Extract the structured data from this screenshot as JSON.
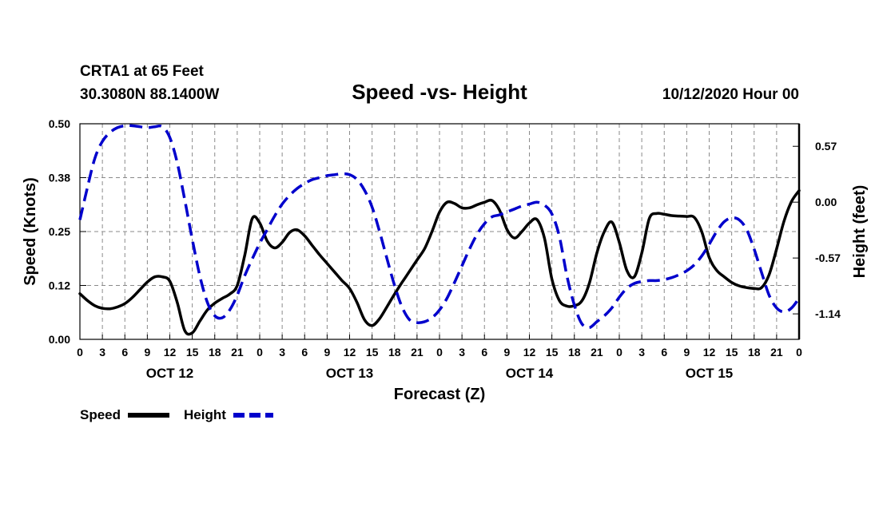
{
  "chart_data": {
    "type": "line",
    "header": {
      "station": "CRTA1 at 65 Feet",
      "coords": "30.3080N 88.1400W",
      "title": "Speed -vs- Height",
      "run": "10/12/2020 Hour 00"
    },
    "xlabel": "Forecast (Z)",
    "ylabel_left": "Speed (Knots)",
    "ylabel_right": "Height (feet)",
    "x_ticks": [
      "0",
      "3",
      "6",
      "9",
      "12",
      "15",
      "18",
      "21",
      "0",
      "3",
      "6",
      "9",
      "12",
      "15",
      "18",
      "21",
      "0",
      "3",
      "6",
      "9",
      "12",
      "15",
      "18",
      "21",
      "0",
      "3",
      "6",
      "9",
      "12",
      "15",
      "18",
      "21",
      "0"
    ],
    "days": [
      "OCT 12",
      "OCT 13",
      "OCT 14",
      "OCT 15"
    ],
    "y_left_ticks": [
      "0.00",
      "0.12",
      "0.25",
      "0.38",
      "0.50"
    ],
    "y_right_ticks": [
      "-1.14",
      "-0.57",
      "0.00",
      "0.57"
    ],
    "ylim_left": [
      0,
      0.5
    ],
    "ylim_right": [
      -1.4,
      0.8
    ],
    "xlim": [
      0,
      96
    ],
    "legend": [
      {
        "label": "Speed",
        "color": "#000000",
        "style": "solid"
      },
      {
        "label": "Height",
        "color": "#0000cc",
        "style": "dashed"
      }
    ],
    "series": [
      {
        "name": "Speed",
        "axis": "left",
        "color": "#000000",
        "x": [
          0,
          1,
          2,
          3,
          4,
          5,
          6,
          7,
          8,
          9,
          10,
          11,
          12,
          13,
          14,
          15,
          16,
          17,
          18,
          19,
          20,
          21,
          22,
          23,
          24,
          25,
          26,
          27,
          28,
          29,
          30,
          31,
          32,
          33,
          34,
          35,
          36,
          37,
          38,
          39,
          40,
          41,
          42,
          43,
          44,
          45,
          46,
          47,
          48,
          49,
          50,
          51,
          52,
          53,
          54,
          55,
          56,
          57,
          58,
          59,
          60,
          61,
          62,
          63,
          64,
          65,
          66,
          67,
          68,
          69,
          70,
          71,
          72,
          73,
          74,
          75,
          76,
          77,
          78,
          79,
          80,
          81,
          82,
          83,
          84,
          85,
          86,
          87,
          88,
          89,
          90,
          91,
          92,
          93,
          94,
          95,
          96
        ],
        "values": [
          0.106,
          0.09,
          0.078,
          0.072,
          0.071,
          0.075,
          0.083,
          0.097,
          0.115,
          0.133,
          0.145,
          0.145,
          0.135,
          0.085,
          0.02,
          0.015,
          0.042,
          0.068,
          0.084,
          0.095,
          0.105,
          0.125,
          0.195,
          0.28,
          0.27,
          0.228,
          0.212,
          0.225,
          0.248,
          0.254,
          0.24,
          0.218,
          0.196,
          0.176,
          0.156,
          0.136,
          0.118,
          0.085,
          0.045,
          0.032,
          0.048,
          0.076,
          0.105,
          0.132,
          0.158,
          0.184,
          0.21,
          0.25,
          0.295,
          0.318,
          0.315,
          0.305,
          0.305,
          0.312,
          0.318,
          0.322,
          0.3,
          0.255,
          0.235,
          0.25,
          0.27,
          0.278,
          0.235,
          0.14,
          0.09,
          0.077,
          0.078,
          0.089,
          0.13,
          0.2,
          0.25,
          0.272,
          0.225,
          0.16,
          0.145,
          0.2,
          0.28,
          0.292,
          0.29,
          0.287,
          0.286,
          0.285,
          0.283,
          0.25,
          0.19,
          0.16,
          0.145,
          0.132,
          0.124,
          0.12,
          0.118,
          0.12,
          0.15,
          0.21,
          0.275,
          0.32,
          0.345
        ]
      },
      {
        "name": "Height",
        "axis": "right",
        "color": "#0000cc",
        "x": [
          0,
          1,
          2,
          3,
          4,
          5,
          6,
          7,
          8,
          9,
          10,
          11,
          12,
          13,
          14,
          15,
          16,
          17,
          18,
          19,
          20,
          21,
          22,
          23,
          24,
          25,
          26,
          27,
          28,
          29,
          30,
          31,
          32,
          33,
          34,
          35,
          36,
          37,
          38,
          39,
          40,
          41,
          42,
          43,
          44,
          45,
          46,
          47,
          48,
          49,
          50,
          51,
          52,
          53,
          54,
          55,
          56,
          57,
          58,
          59,
          60,
          61,
          62,
          63,
          64,
          65,
          66,
          67,
          68,
          69,
          70,
          71,
          72,
          73,
          74,
          75,
          76,
          77,
          78,
          79,
          80,
          81,
          82,
          83,
          84,
          85,
          86,
          87,
          88,
          89,
          90,
          91,
          92,
          93,
          94,
          95,
          96
        ],
        "values": [
          -0.18,
          0.15,
          0.45,
          0.62,
          0.71,
          0.76,
          0.78,
          0.78,
          0.77,
          0.76,
          0.77,
          0.77,
          0.66,
          0.4,
          0.02,
          -0.38,
          -0.75,
          -1.02,
          -1.16,
          -1.18,
          -1.1,
          -0.95,
          -0.75,
          -0.58,
          -0.42,
          -0.28,
          -0.14,
          -0.02,
          0.07,
          0.14,
          0.19,
          0.23,
          0.25,
          0.27,
          0.28,
          0.29,
          0.28,
          0.23,
          0.12,
          -0.05,
          -0.3,
          -0.58,
          -0.85,
          -1.07,
          -1.2,
          -1.23,
          -1.22,
          -1.18,
          -1.1,
          -0.98,
          -0.82,
          -0.65,
          -0.48,
          -0.33,
          -0.22,
          -0.15,
          -0.13,
          -0.1,
          -0.07,
          -0.04,
          -0.02,
          0.0,
          -0.03,
          -0.12,
          -0.35,
          -0.75,
          -1.05,
          -1.24,
          -1.28,
          -1.22,
          -1.16,
          -1.08,
          -0.97,
          -0.88,
          -0.83,
          -0.81,
          -0.8,
          -0.8,
          -0.79,
          -0.77,
          -0.74,
          -0.7,
          -0.64,
          -0.55,
          -0.43,
          -0.3,
          -0.2,
          -0.16,
          -0.18,
          -0.28,
          -0.48,
          -0.72,
          -0.95,
          -1.08,
          -1.12,
          -1.08,
          -0.98
        ]
      }
    ]
  }
}
